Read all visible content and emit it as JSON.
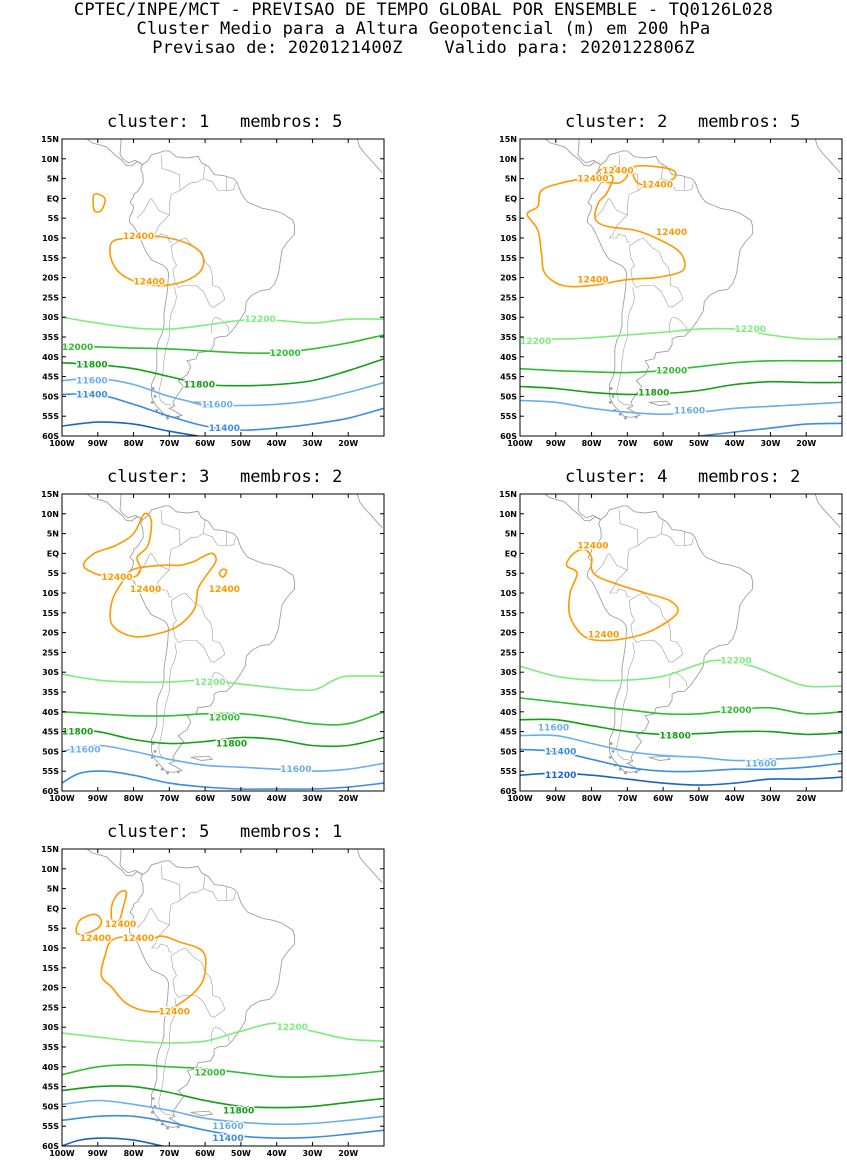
{
  "header": {
    "line1": "CPTEC/INPE/MCT - PREVISAO DE TEMPO GLOBAL POR ENSEMBLE - TQ0126L028",
    "line2": "Cluster Medio para a Altura Geopotencial (m) em 200 hPa",
    "line3": "Previsao de: 2020121400Z    Valido para: 2020122806Z"
  },
  "axes": {
    "lat_labels": [
      "15N",
      "10N",
      "5N",
      "EQ",
      "5S",
      "10S",
      "15S",
      "20S",
      "25S",
      "30S",
      "35S",
      "40S",
      "45S",
      "50S",
      "55S",
      "60S"
    ],
    "lon_labels": [
      "100W",
      "90W",
      "80W",
      "70W",
      "60W",
      "50W",
      "40W",
      "30W",
      "20W"
    ]
  },
  "colors": {
    "c12400": "#ff9900",
    "c12200": "#7ded7d",
    "c12000": "#2fbe2f",
    "c11800": "#139f13",
    "c11600": "#6aaeee",
    "c11400": "#3b8de0",
    "c11200": "#1a64c8",
    "coast": "#a0a0a0"
  },
  "panels": [
    {
      "title": "cluster: 1   membros: 5",
      "labels": [
        {
          "text": "12400",
          "lon": -83,
          "lat": -9.5,
          "c": "c12400"
        },
        {
          "text": "12400",
          "lon": -80,
          "lat": -21,
          "c": "c12400"
        },
        {
          "text": "12200",
          "lon": -49,
          "lat": -30.5,
          "c": "c12200"
        },
        {
          "text": "12000",
          "lon": -100,
          "lat": -37.5,
          "c": "c12000"
        },
        {
          "text": "12000",
          "lon": -42,
          "lat": -39,
          "c": "c12000"
        },
        {
          "text": "11800",
          "lon": -96,
          "lat": -42,
          "c": "c11800"
        },
        {
          "text": "11800",
          "lon": -66,
          "lat": -47,
          "c": "c11800"
        },
        {
          "text": "11600",
          "lon": -96,
          "lat": -46,
          "c": "c11600"
        },
        {
          "text": "11600",
          "lon": -61,
          "lat": -52,
          "c": "c11600"
        },
        {
          "text": "11400",
          "lon": -96,
          "lat": -49.5,
          "c": "c11400"
        },
        {
          "text": "11400",
          "lon": -59,
          "lat": -58,
          "c": "c11400"
        }
      ]
    },
    {
      "title": "cluster: 2   membros: 5",
      "labels": [
        {
          "text": "12400",
          "lon": -84,
          "lat": 5,
          "c": "c12400"
        },
        {
          "text": "12400",
          "lon": -77,
          "lat": 7,
          "c": "c12400"
        },
        {
          "text": "12400",
          "lon": -66,
          "lat": 3.5,
          "c": "c12400"
        },
        {
          "text": "12400",
          "lon": -62,
          "lat": -8.5,
          "c": "c12400"
        },
        {
          "text": "12400",
          "lon": -84,
          "lat": -20.5,
          "c": "c12400"
        },
        {
          "text": "12200",
          "lon": -100,
          "lat": -36,
          "c": "c12200"
        },
        {
          "text": "12200",
          "lon": -40,
          "lat": -33,
          "c": "c12200"
        },
        {
          "text": "12000",
          "lon": -62,
          "lat": -43.5,
          "c": "c12000"
        },
        {
          "text": "11800",
          "lon": -67,
          "lat": -49,
          "c": "c11800"
        },
        {
          "text": "11600",
          "lon": -57,
          "lat": -53.5,
          "c": "c11600"
        }
      ]
    },
    {
      "title": "cluster: 3   membros: 2",
      "labels": [
        {
          "text": "12400",
          "lon": -89,
          "lat": -6,
          "c": "c12400"
        },
        {
          "text": "12400",
          "lon": -81,
          "lat": -9,
          "c": "c12400"
        },
        {
          "text": "12400",
          "lon": -59,
          "lat": -9,
          "c": "c12400"
        },
        {
          "text": "12200",
          "lon": -63,
          "lat": -32.5,
          "c": "c12200"
        },
        {
          "text": "12000",
          "lon": -59,
          "lat": -41.5,
          "c": "c12000"
        },
        {
          "text": "11800",
          "lon": -100,
          "lat": -45,
          "c": "c11800"
        },
        {
          "text": "11800",
          "lon": -57,
          "lat": -48,
          "c": "c11800"
        },
        {
          "text": "11600",
          "lon": -98,
          "lat": -49.5,
          "c": "c11600"
        },
        {
          "text": "11600",
          "lon": -39,
          "lat": -54.5,
          "c": "c11600"
        }
      ]
    },
    {
      "title": "cluster: 4   membros: 2",
      "labels": [
        {
          "text": "12400",
          "lon": -84,
          "lat": 2,
          "c": "c12400"
        },
        {
          "text": "12400",
          "lon": -81,
          "lat": -20.5,
          "c": "c12400"
        },
        {
          "text": "12200",
          "lon": -44,
          "lat": -27,
          "c": "c12200"
        },
        {
          "text": "12000",
          "lon": -44,
          "lat": -39.5,
          "c": "c12000"
        },
        {
          "text": "11800",
          "lon": -61,
          "lat": -46,
          "c": "c11800"
        },
        {
          "text": "11600",
          "lon": -95,
          "lat": -44,
          "c": "c11600"
        },
        {
          "text": "11600",
          "lon": -37,
          "lat": -53,
          "c": "c11600"
        },
        {
          "text": "11400",
          "lon": -93,
          "lat": -50,
          "c": "c11400"
        },
        {
          "text": "11200",
          "lon": -93,
          "lat": -56,
          "c": "c11200"
        }
      ]
    },
    {
      "title": "cluster: 5   membros: 1",
      "labels": [
        {
          "text": "12400",
          "lon": -95,
          "lat": -7.5,
          "c": "c12400"
        },
        {
          "text": "12400",
          "lon": -88,
          "lat": -4,
          "c": "c12400"
        },
        {
          "text": "12400",
          "lon": -83,
          "lat": -7.5,
          "c": "c12400"
        },
        {
          "text": "12400",
          "lon": -73,
          "lat": -26,
          "c": "c12400"
        },
        {
          "text": "12200",
          "lon": -40,
          "lat": -30,
          "c": "c12200"
        },
        {
          "text": "12000",
          "lon": -63,
          "lat": -41.5,
          "c": "c12000"
        },
        {
          "text": "11800",
          "lon": -55,
          "lat": -51,
          "c": "c11800"
        },
        {
          "text": "11600",
          "lon": -58,
          "lat": -55,
          "c": "c11600"
        },
        {
          "text": "11400",
          "lon": -58,
          "lat": -58,
          "c": "c11400"
        }
      ]
    }
  ]
}
